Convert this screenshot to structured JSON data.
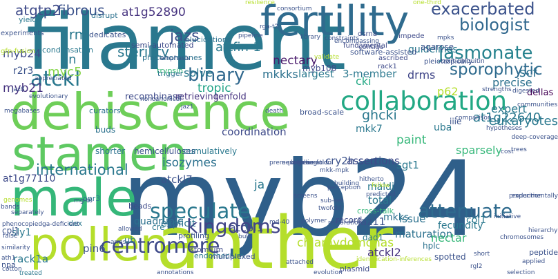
{
  "words": [
    {
      "text": "myb24",
      "color": "#2f5f8a"
    },
    {
      "text": "filament",
      "color": "#2a788e"
    },
    {
      "text": "anther",
      "color": "#b5de2b"
    },
    {
      "text": "dehiscence",
      "color": "#6ece58"
    },
    {
      "text": "fertility",
      "color": "#2f6b8e"
    },
    {
      "text": "stamen",
      "color": "#5ec962"
    },
    {
      "text": "pollen",
      "color": "#b5de2b"
    },
    {
      "text": "male",
      "color": "#35b779"
    },
    {
      "text": "collaboration",
      "color": "#22a884"
    },
    {
      "text": "exacerbated",
      "color": "#3b528b"
    },
    {
      "text": "biologist",
      "color": "#31688e"
    },
    {
      "text": "centromere",
      "color": "#3e4a89"
    },
    {
      "text": "speculate",
      "color": "#2a788e"
    },
    {
      "text": "jasmonate",
      "color": "#26828e"
    },
    {
      "text": "kingdoms",
      "color": "#414487"
    },
    {
      "text": "binary",
      "color": "#31688e"
    },
    {
      "text": "attenuate",
      "color": "#2f6b8e"
    },
    {
      "text": "atckl",
      "color": "#2a788e"
    },
    {
      "text": "international",
      "color": "#2a788e"
    },
    {
      "text": "sporophytic",
      "color": "#2f6b8e"
    },
    {
      "text": "fibrous",
      "color": "#3b528b"
    },
    {
      "text": "atgtp2",
      "color": "#3e4a89"
    },
    {
      "text": "tropic",
      "color": "#20a386"
    },
    {
      "text": "sterility",
      "color": "#2a788e"
    },
    {
      "text": "jazs",
      "color": "#3b528b"
    },
    {
      "text": "at1g52890",
      "color": "#46337f"
    },
    {
      "text": "nectary",
      "color": "#48186a"
    },
    {
      "text": "mkkks",
      "color": "#2c718e"
    },
    {
      "text": "largest",
      "color": "#2a788e"
    },
    {
      "text": "3-member",
      "color": "#2a788e"
    },
    {
      "text": "drms",
      "color": "#404688"
    },
    {
      "text": "scf",
      "color": "#2c718e"
    },
    {
      "text": "drm",
      "color": "#2a788e"
    },
    {
      "text": "en",
      "color": "#2a788e"
    },
    {
      "text": "myc5",
      "color": "#86d549"
    },
    {
      "text": "r2r3",
      "color": "#3b528b"
    },
    {
      "text": "myb24",
      "color": "#3e4a89"
    },
    {
      "text": "myb21",
      "color": "#46337f"
    },
    {
      "text": "attfin-1",
      "color": "#2a788e"
    },
    {
      "text": "cki",
      "color": "#22a884"
    },
    {
      "text": "ghcki",
      "color": "#2a788e"
    },
    {
      "text": "p62",
      "color": "#b5de2b"
    },
    {
      "text": "precise",
      "color": "#2c718e"
    },
    {
      "text": "dellas",
      "color": "#440154"
    },
    {
      "text": "tenfold",
      "color": "#46337f"
    },
    {
      "text": "recombinase",
      "color": "#3e4a89"
    },
    {
      "text": "retrieving",
      "color": "#46337f"
    },
    {
      "text": "solve",
      "color": "#2a788e"
    },
    {
      "text": "myb108",
      "color": "#3e4a89"
    },
    {
      "text": "guidelines",
      "color": "#2a788e"
    },
    {
      "text": "agarose",
      "color": "#3b528b"
    },
    {
      "text": "eukaryotes",
      "color": "#2a788e"
    },
    {
      "text": "at1g22640",
      "color": "#2a788e"
    },
    {
      "text": "expert",
      "color": "#2a788e"
    },
    {
      "text": "coordination",
      "color": "#3e4a89"
    },
    {
      "text": "mkk7",
      "color": "#2a788e"
    },
    {
      "text": "uba",
      "color": "#2a788e"
    },
    {
      "text": "iiie",
      "color": "#3b528b"
    },
    {
      "text": "paint",
      "color": "#35b779"
    },
    {
      "text": "sparsely",
      "color": "#35b779"
    },
    {
      "text": "sgt1",
      "color": "#2a788e"
    },
    {
      "text": "isozymes",
      "color": "#2c718e"
    },
    {
      "text": "at1g77110",
      "color": "#3e4a89"
    },
    {
      "text": "atckl7",
      "color": "#3b528b"
    },
    {
      "text": "cry2h-seq",
      "color": "#3b528b"
    },
    {
      "text": "ja",
      "color": "#2a788e"
    },
    {
      "text": "maldi",
      "color": "#2a788e"
    },
    {
      "text": "assertions",
      "color": "#3e4a89"
    },
    {
      "text": "total",
      "color": "#2a788e"
    },
    {
      "text": "jaz11",
      "color": "#3b528b"
    },
    {
      "text": "mkks",
      "color": "#2c718e"
    },
    {
      "text": "coi1",
      "color": "#2a788e"
    },
    {
      "text": "fecundity",
      "color": "#2a788e"
    },
    {
      "text": "issue",
      "color": "#2c718e"
    },
    {
      "text": "maturation",
      "color": "#2c718e"
    },
    {
      "text": "atcpl1",
      "color": "#3e4a89"
    },
    {
      "text": "explicit",
      "color": "#2c718e"
    },
    {
      "text": "quadruple",
      "color": "#2c718e"
    },
    {
      "text": "sly1",
      "color": "#2a788e"
    },
    {
      "text": "cpl1",
      "color": "#3b528b"
    },
    {
      "text": "pin6",
      "color": "#3b528b"
    },
    {
      "text": "rack1a",
      "color": "#2a788e"
    },
    {
      "text": "chlamydomonas",
      "color": "#b5de2b"
    },
    {
      "text": "atckl2",
      "color": "#46337f"
    },
    {
      "text": "nectar",
      "color": "#35b779"
    },
    {
      "text": "buds",
      "color": "#2c718e"
    },
    {
      "text": "shorter",
      "color": "#2c718e"
    },
    {
      "text": "hemicelluloses",
      "color": "#3b528b"
    },
    {
      "text": "cumulatively",
      "color": "#2a788e"
    },
    {
      "text": "ub",
      "color": "#2a788e"
    },
    {
      "text": "cre",
      "color": "#2a788e"
    },
    {
      "text": "profiling",
      "color": "#3b528b"
    },
    {
      "text": "stomium",
      "color": "#3e4a89"
    },
    {
      "text": "endothecium",
      "color": "#2a788e"
    },
    {
      "text": "multiplexed",
      "color": "#3b528b"
    },
    {
      "text": "plasmid",
      "color": "#3e4a89"
    },
    {
      "text": "record",
      "color": "#3e4a89"
    },
    {
      "text": "dad1",
      "color": "#2a788e"
    },
    {
      "text": "hplc",
      "color": "#2c718e"
    },
    {
      "text": "spotted",
      "color": "#3b528b"
    },
    {
      "text": "peptide",
      "color": "#3b528b"
    },
    {
      "text": "opr3",
      "color": "#2a788e"
    },
    {
      "text": "dex",
      "color": "#2a788e"
    },
    {
      "text": "beads",
      "color": "#3e4a89"
    },
    {
      "text": "npa",
      "color": "#3b528b"
    },
    {
      "text": "semi-automated",
      "color": "#3e4a89"
    },
    {
      "text": "phytohormones",
      "color": "#2c718e"
    },
    {
      "text": "elucidations",
      "color": "#2c718e"
    },
    {
      "text": "curators",
      "color": "#2c718e"
    },
    {
      "text": "trigger",
      "color": "#2c718e"
    },
    {
      "text": "condensation",
      "color": "#2a788e"
    },
    {
      "text": "dedicates",
      "color": "#3b528b"
    },
    {
      "text": "disrupt",
      "color": "#2c718e"
    },
    {
      "text": "yield",
      "color": "#2a788e"
    },
    {
      "text": "experiments",
      "color": "#3b528b"
    },
    {
      "text": "trypsin",
      "color": "#35b779"
    },
    {
      "text": "gfp-fusion",
      "color": "#b5de2b"
    },
    {
      "text": "pleiotropically",
      "color": "#3b528b"
    },
    {
      "text": "contigs",
      "color": "#3e4a89"
    },
    {
      "text": "ascribed",
      "color": "#3e4a89"
    },
    {
      "text": "rack1",
      "color": "#3e4a89"
    },
    {
      "text": "dsrna",
      "color": "#3e4a89"
    },
    {
      "text": "impede",
      "color": "#3e4a89"
    },
    {
      "text": "fundamental",
      "color": "#3e4a89"
    },
    {
      "text": "software-assisted",
      "color": "#3b528b"
    },
    {
      "text": "broad-scale",
      "color": "#3b528b"
    },
    {
      "text": "death",
      "color": "#3b528b"
    },
    {
      "text": "megabases",
      "color": "#3b528b"
    },
    {
      "text": "bands",
      "color": "#3b528b"
    },
    {
      "text": "phenocopied",
      "color": "#3b528b"
    },
    {
      "text": "ga-deficient",
      "color": "#3b528b"
    },
    {
      "text": "similarity",
      "color": "#3b528b"
    },
    {
      "text": "ath1",
      "color": "#3b528b"
    },
    {
      "text": "cotton",
      "color": "#3b528b"
    },
    {
      "text": "treated",
      "color": "#2a788e"
    },
    {
      "text": "annotations",
      "color": "#3b528b"
    },
    {
      "text": "evolution",
      "color": "#3b528b"
    },
    {
      "text": "selection",
      "color": "#3b528b"
    },
    {
      "text": "rgl2",
      "color": "#3b528b"
    },
    {
      "text": "applied",
      "color": "#3b528b"
    },
    {
      "text": "short",
      "color": "#3b528b"
    },
    {
      "text": "chromosomes",
      "color": "#3b528b"
    },
    {
      "text": "hierarchy",
      "color": "#3b528b"
    },
    {
      "text": "experimentally",
      "color": "#3b528b"
    },
    {
      "text": "production",
      "color": "#3b528b"
    },
    {
      "text": "initiative",
      "color": "#3b528b"
    },
    {
      "text": "restoration",
      "color": "#3b528b"
    },
    {
      "text": "polymer",
      "color": "#3b528b"
    },
    {
      "text": "screens",
      "color": "#3b528b"
    },
    {
      "text": "twofold",
      "color": "#3b528b"
    },
    {
      "text": "sub-set",
      "color": "#3b528b"
    },
    {
      "text": "mkk-mpk",
      "color": "#3b528b"
    },
    {
      "text": "cross-talk",
      "color": "#35b779"
    },
    {
      "text": "prerequisites",
      "color": "#3b528b"
    },
    {
      "text": "next-generation",
      "color": "#3b528b"
    },
    {
      "text": "labelling",
      "color": "#3b528b"
    },
    {
      "text": "three-fold",
      "color": "#3b528b"
    },
    {
      "text": "predicted",
      "color": "#3b528b"
    },
    {
      "text": "hypotheses",
      "color": "#3b528b"
    },
    {
      "text": "deep-coverage",
      "color": "#3b528b"
    },
    {
      "text": "trees",
      "color": "#3b528b"
    },
    {
      "text": "cost",
      "color": "#3b528b"
    },
    {
      "text": "comparison",
      "color": "#3b528b"
    },
    {
      "text": "communities",
      "color": "#3b528b"
    },
    {
      "text": "digested",
      "color": "#3b528b"
    },
    {
      "text": "strengths",
      "color": "#3b528b"
    },
    {
      "text": "split-ubiquitin",
      "color": "#3b528b"
    },
    {
      "text": "constraints",
      "color": "#3b528b"
    },
    {
      "text": "encompassing",
      "color": "#3b528b"
    },
    {
      "text": "validate",
      "color": "#b5de2b"
    },
    {
      "text": "library",
      "color": "#3b528b"
    },
    {
      "text": "pipeline",
      "color": "#3b528b"
    },
    {
      "text": "rga-t2",
      "color": "#3b528b"
    },
    {
      "text": "resilience",
      "color": "#b5de2b"
    },
    {
      "text": "one-third",
      "color": "#b5de2b"
    },
    {
      "text": "mpks",
      "color": "#3b528b"
    },
    {
      "text": "jaz8",
      "color": "#3b528b"
    },
    {
      "text": "evolutionary",
      "color": "#3b528b"
    },
    {
      "text": "appreciated",
      "color": "#3b528b"
    },
    {
      "text": "emphasis",
      "color": "#3b528b"
    },
    {
      "text": "noncanonical",
      "color": "#3b528b"
    },
    {
      "text": "jaz1",
      "color": "#3b528b"
    },
    {
      "text": "perception",
      "color": "#3b528b"
    },
    {
      "text": "building",
      "color": "#3b528b"
    },
    {
      "text": "hitherto",
      "color": "#3b528b"
    },
    {
      "text": "genomes",
      "color": "#b5de2b"
    },
    {
      "text": "false",
      "color": "#3b528b"
    },
    {
      "text": "md-40",
      "color": "#3b528b"
    },
    {
      "text": "bulk",
      "color": "#3b528b"
    },
    {
      "text": "attached",
      "color": "#3b528b"
    },
    {
      "text": "allowed",
      "color": "#3b528b"
    },
    {
      "text": "identification-inferences",
      "color": "#b5de2b"
    },
    {
      "text": "arms",
      "color": "#3b528b"
    },
    {
      "text": "consortium",
      "color": "#3b528b"
    },
    {
      "text": "mg-t6",
      "color": "#3b528b"
    },
    {
      "text": "separately",
      "color": "#3b528b"
    },
    {
      "text": "follow",
      "color": "#b5de2b"
    },
    {
      "text": "degree",
      "color": "#b5de2b"
    }
  ]
}
